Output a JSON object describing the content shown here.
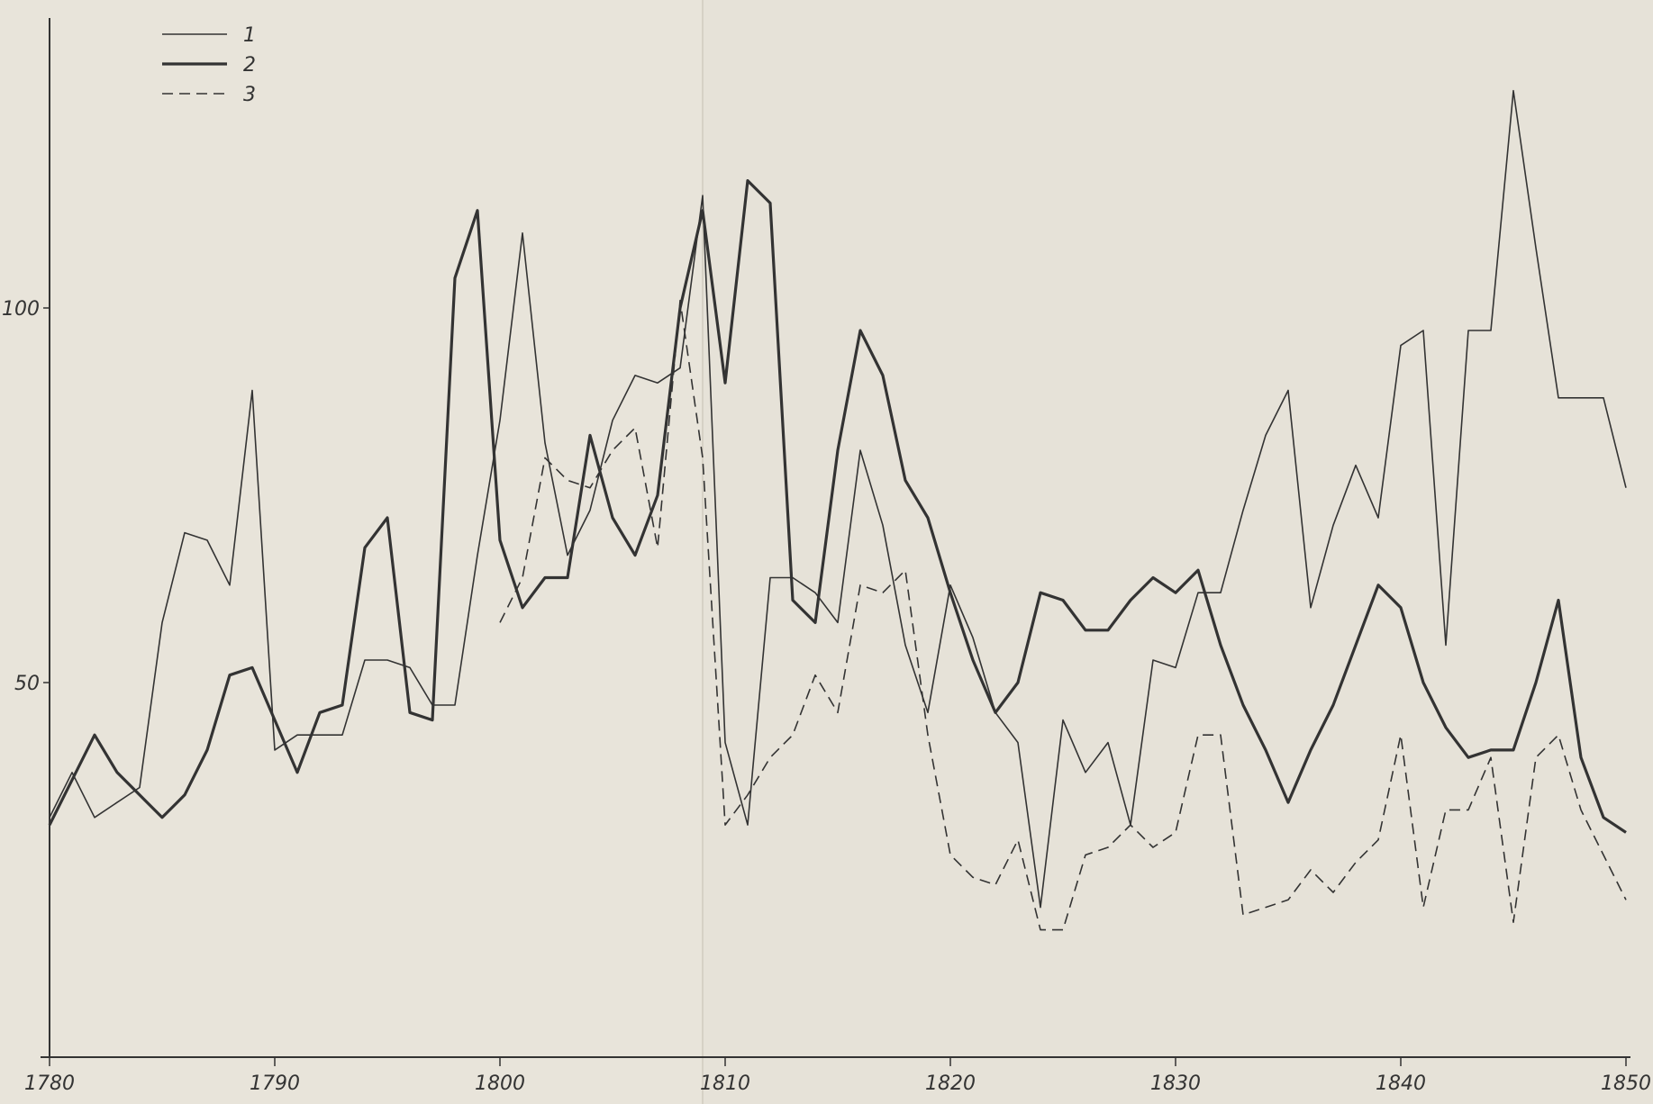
{
  "chart_data": {
    "type": "line",
    "title": "",
    "xlabel": "",
    "ylabel": "",
    "xlim": [
      1780,
      1850
    ],
    "ylim": [
      0,
      115
    ],
    "grid": false,
    "legend_position": "top-left",
    "x_ticks": [
      1780,
      1790,
      1800,
      1810,
      1820,
      1830,
      1840,
      1850
    ],
    "x_tick_labels": [
      "1780",
      "1790",
      "1800",
      "1810",
      "1820",
      "1830",
      "1840",
      "1850"
    ],
    "y_ticks": [
      50,
      100
    ],
    "y_tick_labels": [
      "50",
      "100"
    ],
    "series": [
      {
        "name": "1",
        "style": "thin-solid",
        "x": [
          1780,
          1781,
          1782,
          1783,
          1784,
          1785,
          1786,
          1787,
          1788,
          1789,
          1790,
          1791,
          1792,
          1793,
          1794,
          1795,
          1796,
          1797,
          1798,
          1799,
          1800,
          1801,
          1802,
          1803,
          1804,
          1805,
          1806,
          1807,
          1808,
          1809,
          1810,
          1811,
          1812,
          1813,
          1814,
          1815,
          1816,
          1817,
          1818,
          1819,
          1820,
          1821,
          1822,
          1823,
          1824,
          1825,
          1826,
          1827,
          1828,
          1829,
          1830,
          1831,
          1832,
          1833,
          1834,
          1835,
          1836,
          1837,
          1838,
          1839,
          1840,
          1841,
          1842,
          1843,
          1844,
          1845,
          1846,
          1847,
          1848,
          1849,
          1850
        ],
        "values": [
          32,
          38,
          32,
          34,
          36,
          58,
          70,
          69,
          63,
          89,
          41,
          43,
          43,
          43,
          53,
          53,
          52,
          47,
          47,
          67,
          85,
          110,
          82,
          67,
          73,
          85,
          91,
          90,
          92,
          115,
          42,
          31,
          64,
          64,
          62,
          58,
          81,
          71,
          55,
          46,
          63,
          56,
          46,
          42,
          20,
          45,
          38,
          42,
          31,
          53,
          52,
          62,
          62,
          73,
          83,
          89,
          60,
          71,
          79,
          72,
          95,
          97,
          55,
          97,
          97,
          129,
          108,
          88,
          88,
          88,
          76
        ]
      },
      {
        "name": "2",
        "style": "thick-solid",
        "x": [
          1780,
          1781,
          1782,
          1783,
          1784,
          1785,
          1786,
          1787,
          1788,
          1789,
          1790,
          1791,
          1792,
          1793,
          1794,
          1795,
          1796,
          1797,
          1798,
          1799,
          1800,
          1801,
          1802,
          1803,
          1804,
          1805,
          1806,
          1807,
          1808,
          1809,
          1810,
          1811,
          1812,
          1813,
          1814,
          1815,
          1816,
          1817,
          1818,
          1819,
          1820,
          1821,
          1822,
          1823,
          1824,
          1825,
          1826,
          1827,
          1828,
          1829,
          1830,
          1831,
          1832,
          1833,
          1834,
          1835,
          1836,
          1837,
          1838,
          1839,
          1840,
          1841,
          1842,
          1843,
          1844,
          1845,
          1846,
          1847,
          1848,
          1849,
          1850
        ],
        "values": [
          31,
          37,
          43,
          38,
          35,
          32,
          35,
          41,
          51,
          52,
          45,
          38,
          46,
          47,
          68,
          72,
          46,
          45,
          104,
          113,
          69,
          60,
          64,
          64,
          83,
          72,
          67,
          75,
          100,
          113,
          90,
          117,
          114,
          61,
          58,
          81,
          97,
          91,
          77,
          72,
          62,
          53,
          46,
          50,
          62,
          61,
          57,
          57,
          61,
          64,
          62,
          65,
          55,
          47,
          41,
          34,
          41,
          47,
          55,
          63,
          60,
          50,
          44,
          40,
          41,
          41,
          50,
          61,
          40,
          32,
          30
        ]
      },
      {
        "name": "3",
        "style": "dashed",
        "x": [
          1800,
          1801,
          1802,
          1803,
          1804,
          1805,
          1806,
          1807,
          1808,
          1809,
          1810,
          1811,
          1812,
          1813,
          1814,
          1815,
          1816,
          1817,
          1818,
          1819,
          1820,
          1821,
          1822,
          1823,
          1824,
          1825,
          1826,
          1827,
          1828,
          1829,
          1830,
          1831,
          1832,
          1833,
          1834,
          1835,
          1836,
          1837,
          1838,
          1839,
          1840,
          1841,
          1842,
          1843,
          1844,
          1845,
          1846,
          1847,
          1848,
          1849,
          1850
        ],
        "values": [
          58,
          64,
          80,
          77,
          76,
          81,
          84,
          68,
          101,
          80,
          31,
          35,
          40,
          43,
          51,
          46,
          63,
          62,
          65,
          43,
          27,
          24,
          23,
          29,
          17,
          17,
          27,
          28,
          31,
          28,
          30,
          43,
          43,
          19,
          20,
          21,
          25,
          22,
          26,
          29,
          43,
          20,
          33,
          33,
          40,
          18,
          40,
          43,
          33,
          27,
          21
        ]
      }
    ]
  }
}
